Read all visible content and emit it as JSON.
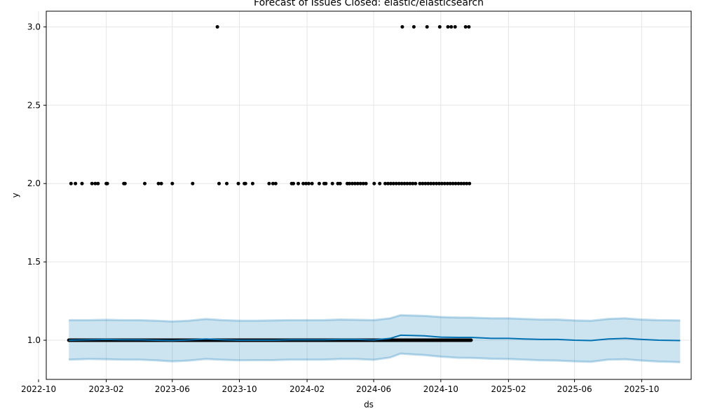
{
  "chart_data": {
    "type": "line",
    "title": "Forecast of Issues Closed: elastic/elasticsearch",
    "xlabel": "ds",
    "ylabel": "y",
    "x_axis_kind": "date",
    "xlim": [
      "2022-10-15",
      "2025-12-30"
    ],
    "ylim": [
      0.75,
      3.1
    ],
    "grid": true,
    "x_ticks": [
      "2022-10",
      "2023-02",
      "2023-06",
      "2023-10",
      "2024-02",
      "2024-06",
      "2024-10",
      "2025-02",
      "2025-06",
      "2025-10"
    ],
    "x_tick_dates": [
      "2022-10-01",
      "2023-02-01",
      "2023-06-01",
      "2023-10-01",
      "2024-02-01",
      "2024-06-01",
      "2024-10-01",
      "2025-02-01",
      "2025-06-01",
      "2025-10-01"
    ],
    "y_ticks": [
      "1.0",
      "1.5",
      "2.0",
      "2.5",
      "3.0"
    ],
    "y_tick_values": [
      1.0,
      1.5,
      2.0,
      2.5,
      3.0
    ],
    "observed_range": [
      "2022-11-25",
      "2024-11-25"
    ],
    "observed_baseline": 1,
    "observed_high": [
      {
        "ds": "2022-11-29",
        "y": 2
      },
      {
        "ds": "2022-12-07",
        "y": 2
      },
      {
        "ds": "2022-12-19",
        "y": 2
      },
      {
        "ds": "2023-01-06",
        "y": 2
      },
      {
        "ds": "2023-01-12",
        "y": 2
      },
      {
        "ds": "2023-01-17",
        "y": 2
      },
      {
        "ds": "2023-02-01",
        "y": 2
      },
      {
        "ds": "2023-02-03",
        "y": 2
      },
      {
        "ds": "2023-03-05",
        "y": 2
      },
      {
        "ds": "2023-03-07",
        "y": 2
      },
      {
        "ds": "2023-04-12",
        "y": 2
      },
      {
        "ds": "2023-05-07",
        "y": 2
      },
      {
        "ds": "2023-05-12",
        "y": 2
      },
      {
        "ds": "2023-06-01",
        "y": 2
      },
      {
        "ds": "2023-07-08",
        "y": 2
      },
      {
        "ds": "2023-08-25",
        "y": 2
      },
      {
        "ds": "2023-09-08",
        "y": 2
      },
      {
        "ds": "2023-09-29",
        "y": 2
      },
      {
        "ds": "2023-10-10",
        "y": 2
      },
      {
        "ds": "2023-10-12",
        "y": 2
      },
      {
        "ds": "2023-10-25",
        "y": 2
      },
      {
        "ds": "2023-11-24",
        "y": 2
      },
      {
        "ds": "2023-12-01",
        "y": 2
      },
      {
        "ds": "2023-12-06",
        "y": 2
      },
      {
        "ds": "2024-01-04",
        "y": 2
      },
      {
        "ds": "2024-01-07",
        "y": 2
      },
      {
        "ds": "2024-01-16",
        "y": 2
      },
      {
        "ds": "2024-01-25",
        "y": 2
      },
      {
        "ds": "2024-01-30",
        "y": 2
      },
      {
        "ds": "2024-02-04",
        "y": 2
      },
      {
        "ds": "2024-02-10",
        "y": 2
      },
      {
        "ds": "2024-02-23",
        "y": 2
      },
      {
        "ds": "2024-03-03",
        "y": 2
      },
      {
        "ds": "2024-03-06",
        "y": 2
      },
      {
        "ds": "2024-03-18",
        "y": 2
      },
      {
        "ds": "2024-03-28",
        "y": 2
      },
      {
        "ds": "2024-04-01",
        "y": 2
      },
      {
        "ds": "2024-04-14",
        "y": 2
      },
      {
        "ds": "2024-04-18",
        "y": 2
      },
      {
        "ds": "2024-04-23",
        "y": 2
      },
      {
        "ds": "2024-04-28",
        "y": 2
      },
      {
        "ds": "2024-05-03",
        "y": 2
      },
      {
        "ds": "2024-05-08",
        "y": 2
      },
      {
        "ds": "2024-05-13",
        "y": 2
      },
      {
        "ds": "2024-05-18",
        "y": 2
      },
      {
        "ds": "2024-06-02",
        "y": 2
      },
      {
        "ds": "2024-06-12",
        "y": 2
      },
      {
        "ds": "2024-06-22",
        "y": 2
      },
      {
        "ds": "2024-06-27",
        "y": 2
      },
      {
        "ds": "2024-07-02",
        "y": 2
      },
      {
        "ds": "2024-07-07",
        "y": 2
      },
      {
        "ds": "2024-07-12",
        "y": 2
      },
      {
        "ds": "2024-07-17",
        "y": 2
      },
      {
        "ds": "2024-07-22",
        "y": 2
      },
      {
        "ds": "2024-07-27",
        "y": 2
      },
      {
        "ds": "2024-08-01",
        "y": 2
      },
      {
        "ds": "2024-08-06",
        "y": 2
      },
      {
        "ds": "2024-08-11",
        "y": 2
      },
      {
        "ds": "2024-08-16",
        "y": 2
      },
      {
        "ds": "2024-08-24",
        "y": 2
      },
      {
        "ds": "2024-08-29",
        "y": 2
      },
      {
        "ds": "2024-09-03",
        "y": 2
      },
      {
        "ds": "2024-09-08",
        "y": 2
      },
      {
        "ds": "2024-09-13",
        "y": 2
      },
      {
        "ds": "2024-09-18",
        "y": 2
      },
      {
        "ds": "2024-09-23",
        "y": 2
      },
      {
        "ds": "2024-09-28",
        "y": 2
      },
      {
        "ds": "2024-10-03",
        "y": 2
      },
      {
        "ds": "2024-10-08",
        "y": 2
      },
      {
        "ds": "2024-10-13",
        "y": 2
      },
      {
        "ds": "2024-10-18",
        "y": 2
      },
      {
        "ds": "2024-10-23",
        "y": 2
      },
      {
        "ds": "2024-10-28",
        "y": 2
      },
      {
        "ds": "2024-11-02",
        "y": 2
      },
      {
        "ds": "2024-11-07",
        "y": 2
      },
      {
        "ds": "2024-11-12",
        "y": 2
      },
      {
        "ds": "2024-11-17",
        "y": 2
      },
      {
        "ds": "2024-11-22",
        "y": 2
      },
      {
        "ds": "2023-08-22",
        "y": 3
      },
      {
        "ds": "2024-07-23",
        "y": 3
      },
      {
        "ds": "2024-08-13",
        "y": 3
      },
      {
        "ds": "2024-09-06",
        "y": 3
      },
      {
        "ds": "2024-09-29",
        "y": 3
      },
      {
        "ds": "2024-10-14",
        "y": 3
      },
      {
        "ds": "2024-10-20",
        "y": 3
      },
      {
        "ds": "2024-10-27",
        "y": 3
      },
      {
        "ds": "2024-11-15",
        "y": 3
      },
      {
        "ds": "2024-11-21",
        "y": 3
      }
    ],
    "forecast": {
      "ds": [
        "2022-11-25",
        "2023-01-01",
        "2023-02-01",
        "2023-03-01",
        "2023-04-01",
        "2023-05-01",
        "2023-06-01",
        "2023-07-01",
        "2023-08-01",
        "2023-09-01",
        "2023-10-01",
        "2023-11-01",
        "2023-12-01",
        "2024-01-01",
        "2024-02-01",
        "2024-03-01",
        "2024-04-01",
        "2024-05-01",
        "2024-06-01",
        "2024-07-01",
        "2024-07-20",
        "2024-08-10",
        "2024-09-01",
        "2024-10-01",
        "2024-11-01",
        "2024-11-25",
        "2025-01-01",
        "2025-02-01",
        "2025-03-01",
        "2025-04-01",
        "2025-05-01",
        "2025-06-01",
        "2025-07-01",
        "2025-08-01",
        "2025-09-01",
        "2025-10-01",
        "2025-11-01",
        "2025-12-10"
      ],
      "yhat": [
        1.0,
        1.003,
        1.005,
        1.003,
        1.003,
        1.0,
        0.998,
        1.002,
        1.008,
        1.003,
        1.0,
        1.0,
        1.0,
        1.003,
        1.003,
        1.003,
        1.005,
        1.005,
        1.002,
        1.012,
        1.032,
        1.03,
        1.028,
        1.02,
        1.018,
        1.018,
        1.012,
        1.012,
        1.008,
        1.005,
        1.005,
        1.0,
        0.998,
        1.008,
        1.012,
        1.005,
        1.0,
        0.998
      ],
      "yhat_lower": [
        0.876,
        0.88,
        0.878,
        0.876,
        0.876,
        0.872,
        0.865,
        0.87,
        0.88,
        0.875,
        0.872,
        0.873,
        0.873,
        0.876,
        0.876,
        0.876,
        0.88,
        0.88,
        0.875,
        0.89,
        0.915,
        0.91,
        0.905,
        0.895,
        0.888,
        0.887,
        0.882,
        0.88,
        0.876,
        0.872,
        0.87,
        0.865,
        0.862,
        0.876,
        0.878,
        0.87,
        0.864,
        0.86
      ],
      "yhat_upper": [
        1.128,
        1.128,
        1.13,
        1.128,
        1.128,
        1.125,
        1.12,
        1.125,
        1.135,
        1.128,
        1.125,
        1.125,
        1.126,
        1.128,
        1.128,
        1.128,
        1.132,
        1.13,
        1.128,
        1.14,
        1.16,
        1.158,
        1.155,
        1.148,
        1.145,
        1.144,
        1.14,
        1.14,
        1.136,
        1.132,
        1.132,
        1.126,
        1.124,
        1.136,
        1.14,
        1.132,
        1.128,
        1.126
      ]
    },
    "colors": {
      "observed": "#000000",
      "forecast_line": "#0072B2",
      "interval_fill": "#0072B2",
      "interval_opacity": 0.2,
      "grid": "#e6e6e6",
      "axis": "#000000"
    }
  }
}
